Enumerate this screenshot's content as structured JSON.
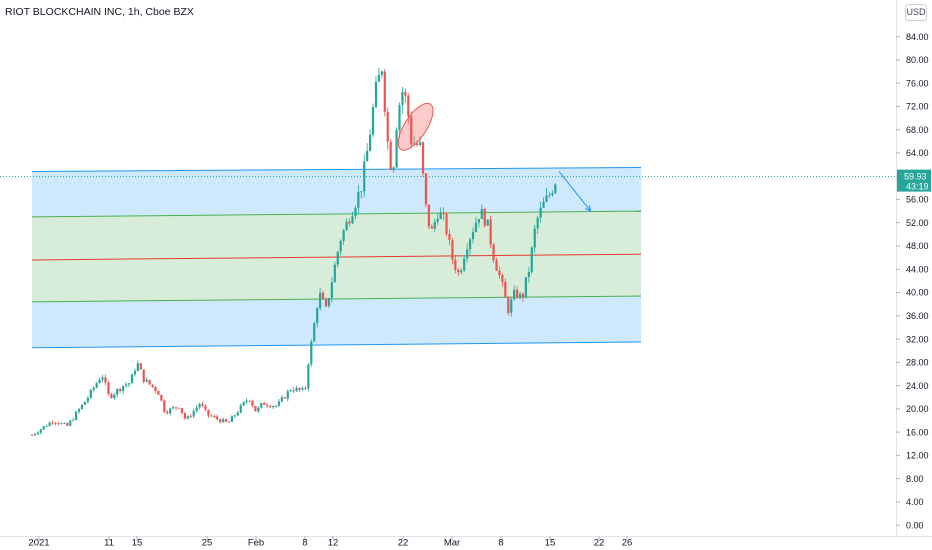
{
  "header": {
    "title": "RIOT BLOCKCHAIN INC, 1h, Cboe BZX",
    "currency": "USD"
  },
  "price_badge": {
    "price": "59.93",
    "countdown": "43:19",
    "color": "#26a69a"
  },
  "colors": {
    "up": "#26a69a",
    "down": "#ef5350",
    "blue_zone": "#2196f3",
    "green_zone": "#4caf50",
    "mid_line": "#e53935",
    "arrow": "#2196f3"
  },
  "chart_data": {
    "type": "candlestick",
    "title": "RIOT BLOCKCHAIN INC, 1h, Cboe BZX",
    "ylabel": "USD",
    "ylim": [
      0,
      86
    ],
    "yticks": [
      "0.00",
      "4.00",
      "8.00",
      "12.00",
      "16.00",
      "20.00",
      "24.00",
      "28.00",
      "32.00",
      "36.00",
      "40.00",
      "44.00",
      "48.00",
      "52.00",
      "56.00",
      "60.00",
      "64.00",
      "68.00",
      "72.00",
      "76.00",
      "80.00",
      "84.00"
    ],
    "xticks": [
      {
        "label": "2021",
        "day": 0
      },
      {
        "label": "11",
        "day": 10
      },
      {
        "label": "15",
        "day": 14
      },
      {
        "label": "25",
        "day": 24
      },
      {
        "label": "Feb",
        "day": 31
      },
      {
        "label": "8",
        "day": 38
      },
      {
        "label": "12",
        "day": 42
      },
      {
        "label": "22",
        "day": 52
      },
      {
        "label": "Mar",
        "day": 59
      },
      {
        "label": "8",
        "day": 66
      },
      {
        "label": "15",
        "day": 73
      },
      {
        "label": "22",
        "day": 80
      },
      {
        "label": "26",
        "day": 84
      }
    ],
    "price_path": [
      [
        -1,
        15.5
      ],
      [
        2,
        18.0
      ],
      [
        4,
        17.0
      ],
      [
        7,
        22.0
      ],
      [
        9,
        26.0
      ],
      [
        10,
        22.0
      ],
      [
        12,
        24.0
      ],
      [
        13,
        24.5
      ],
      [
        14,
        28.0
      ],
      [
        15,
        25.0
      ],
      [
        17,
        23.0
      ],
      [
        18,
        19.5
      ],
      [
        20,
        20.5
      ],
      [
        21,
        18.0
      ],
      [
        23,
        21.0
      ],
      [
        24,
        19.0
      ],
      [
        27,
        17.5
      ],
      [
        29,
        20.5
      ],
      [
        30,
        22.0
      ],
      [
        31,
        19.5
      ],
      [
        32,
        21.0
      ],
      [
        34,
        20.5
      ],
      [
        36,
        23.5
      ],
      [
        38,
        23.0
      ],
      [
        38.4,
        27.5
      ],
      [
        39,
        32.0
      ],
      [
        40,
        40.0
      ],
      [
        41,
        37.0
      ],
      [
        42,
        43.0
      ],
      [
        43,
        49.0
      ],
      [
        44,
        52.0
      ],
      [
        45,
        55.0
      ],
      [
        46,
        58.0
      ],
      [
        47,
        65.0
      ],
      [
        48,
        74.0
      ],
      [
        49,
        79.0
      ],
      [
        49.8,
        66.0
      ],
      [
        50.5,
        60.0
      ],
      [
        51.2,
        71.0
      ],
      [
        52,
        75.0
      ],
      [
        52.6,
        72.0
      ],
      [
        53.2,
        66.0
      ],
      [
        54.5,
        65.0
      ],
      [
        55.2,
        55.0
      ],
      [
        56,
        50.0
      ],
      [
        57,
        54.0
      ],
      [
        58,
        52.0
      ],
      [
        59,
        46.0
      ],
      [
        60,
        43.0
      ],
      [
        61,
        48.0
      ],
      [
        62,
        51.0
      ],
      [
        63,
        54.0
      ],
      [
        64,
        52.0
      ],
      [
        65,
        46.0
      ],
      [
        66,
        42.0
      ],
      [
        67,
        37.0
      ],
      [
        68,
        40.0
      ],
      [
        69,
        39.0
      ],
      [
        70,
        44.0
      ],
      [
        71,
        52.0
      ],
      [
        72,
        55.0
      ],
      [
        73,
        57.0
      ],
      [
        74,
        60.0
      ]
    ],
    "channel": {
      "outer_upper": {
        "start": [
          -1,
          60.8
        ],
        "end": [
          86,
          61.5
        ]
      },
      "inner_upper": {
        "start": [
          -1,
          53.0
        ],
        "end": [
          86,
          54.0
        ]
      },
      "middle": {
        "start": [
          -1,
          45.6
        ],
        "end": [
          86,
          46.6
        ]
      },
      "inner_lower": {
        "start": [
          -1,
          38.4
        ],
        "end": [
          86,
          39.4
        ]
      },
      "outer_lower": {
        "start": [
          -1,
          30.5
        ],
        "end": [
          86,
          31.5
        ]
      }
    },
    "annotations": [
      {
        "type": "ellipse",
        "day": 53.8,
        "price": 68.5,
        "note": "highlighted candles"
      },
      {
        "type": "arrow",
        "from": [
          74.3,
          60.8
        ],
        "to": [
          78.8,
          54.0
        ]
      }
    ],
    "last_price": 59.93,
    "grid": false,
    "legend": "none"
  }
}
